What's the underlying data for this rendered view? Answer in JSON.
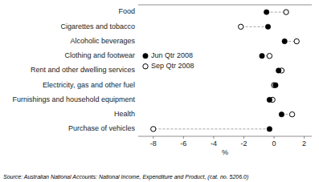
{
  "chart_data": {
    "type": "dot",
    "categories": [
      "Food",
      "Cigarettes and tobacco",
      "Alcoholic beverages",
      "Clothing and footwear",
      "Rent and other dwelling services",
      "Electricity, gas and other fuel",
      "Furnishings and household equipment",
      "Health",
      "Purchase of vehicles"
    ],
    "series": [
      {
        "name": "Jun Qtr 2008",
        "color": "#000000",
        "marker": "circle",
        "values": [
          -0.5,
          -0.4,
          0.7,
          -0.8,
          0.3,
          0.1,
          -0.3,
          0.5,
          -0.3
        ]
      },
      {
        "name": "Sep Qtr 2008",
        "color": "#000000",
        "marker": "open-circle",
        "values": [
          0.8,
          -2.2,
          1.5,
          -0.3,
          0.5,
          0.0,
          -0.1,
          1.2,
          -8.0
        ]
      }
    ],
    "color": "#999999",
    "line_style": "dashed",
    "xlabel": "%",
    "xlim": [
      -9.0,
      2.5
    ],
    "xticks": [
      -8,
      -6,
      -4,
      -2,
      0,
      2
    ],
    "grid": false,
    "legend": "center left",
    "annotations": [
      "Source: Australian National Accounts: National Income, Expenditure and Product,  (cat.  no.  5206.0)"
    ]
  }
}
